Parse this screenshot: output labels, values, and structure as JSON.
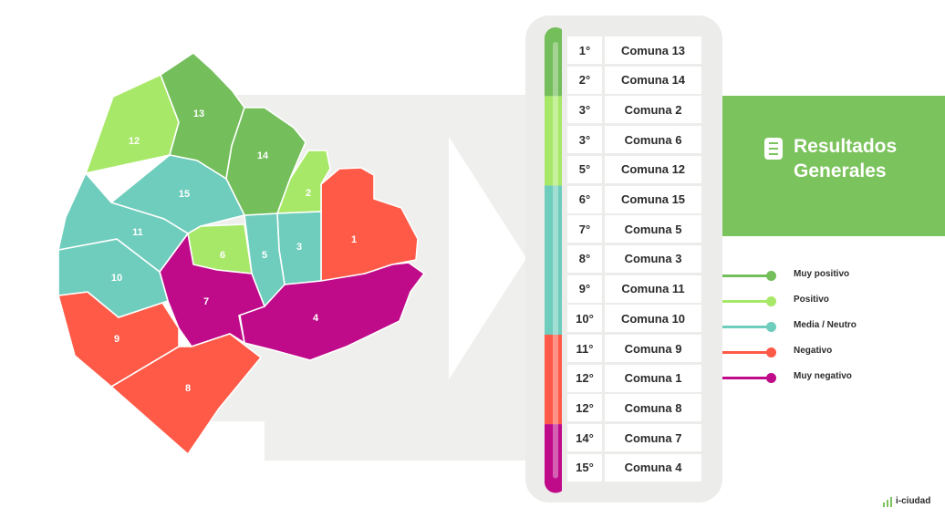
{
  "title": {
    "line1": "Resultados",
    "line2": "Generales"
  },
  "brand": "i-ciudad",
  "categories": [
    {
      "key": "muy_positivo",
      "label": "Muy positivo",
      "color": "#74be5b"
    },
    {
      "key": "positivo",
      "label": "Positivo",
      "color": "#a8e868"
    },
    {
      "key": "neutro",
      "label": "Media / Neutro",
      "color": "#6fcdbd"
    },
    {
      "key": "negativo",
      "label": "Negativo",
      "color": "#ff5a47"
    },
    {
      "key": "muy_negativo",
      "label": "Muy negativo",
      "color": "#bf0b8a"
    }
  ],
  "ranking": [
    {
      "rank": "1°",
      "name": "Comuna 13",
      "category": "muy_positivo"
    },
    {
      "rank": "2°",
      "name": "Comuna 14",
      "category": "muy_positivo"
    },
    {
      "rank": "3°",
      "name": "Comuna 2",
      "category": "positivo"
    },
    {
      "rank": "3°",
      "name": "Comuna 6",
      "category": "positivo"
    },
    {
      "rank": "5°",
      "name": "Comuna 12",
      "category": "positivo"
    },
    {
      "rank": "6°",
      "name": "Comuna 15",
      "category": "neutro"
    },
    {
      "rank": "7°",
      "name": "Comuna 5",
      "category": "neutro"
    },
    {
      "rank": "8°",
      "name": "Comuna 3",
      "category": "neutro"
    },
    {
      "rank": "9°",
      "name": "Comuna 11",
      "category": "neutro"
    },
    {
      "rank": "10°",
      "name": "Comuna 10",
      "category": "neutro"
    },
    {
      "rank": "11°",
      "name": "Comuna 9",
      "category": "negativo"
    },
    {
      "rank": "12°",
      "name": "Comuna 1",
      "category": "negativo"
    },
    {
      "rank": "12°",
      "name": "Comuna 8",
      "category": "negativo"
    },
    {
      "rank": "14°",
      "name": "Comuna 7",
      "category": "muy_negativo"
    },
    {
      "rank": "15°",
      "name": "Comuna 4",
      "category": "muy_negativo"
    }
  ],
  "map_regions": [
    {
      "label": "1",
      "category": "negativo"
    },
    {
      "label": "2",
      "category": "positivo"
    },
    {
      "label": "3",
      "category": "neutro"
    },
    {
      "label": "4",
      "category": "muy_negativo"
    },
    {
      "label": "5",
      "category": "neutro"
    },
    {
      "label": "6",
      "category": "positivo"
    },
    {
      "label": "7",
      "category": "muy_negativo"
    },
    {
      "label": "8",
      "category": "negativo"
    },
    {
      "label": "9",
      "category": "negativo"
    },
    {
      "label": "10",
      "category": "neutro"
    },
    {
      "label": "11",
      "category": "neutro"
    },
    {
      "label": "12",
      "category": "positivo"
    },
    {
      "label": "13",
      "category": "muy_positivo"
    },
    {
      "label": "14",
      "category": "muy_positivo"
    },
    {
      "label": "15",
      "category": "neutro"
    }
  ]
}
